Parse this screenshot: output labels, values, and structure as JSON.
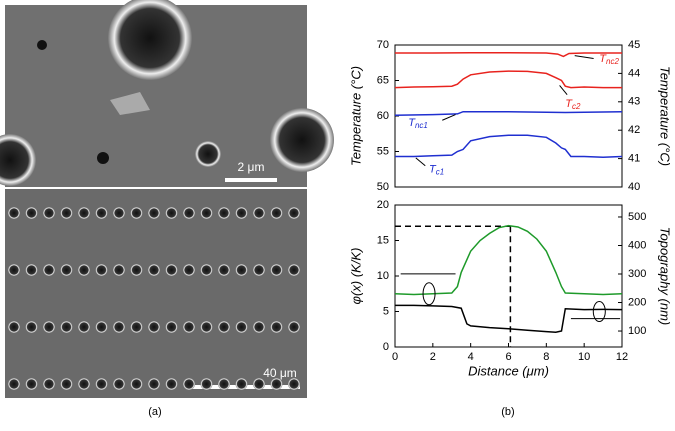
{
  "panels": {
    "a": {
      "label": "(a)",
      "scale_bars": [
        "2 μm",
        "40 μm"
      ]
    },
    "b": {
      "label": "(b)"
    }
  },
  "chart_data": [
    {
      "type": "line",
      "xlim": [
        0,
        12
      ],
      "ylim": [
        50,
        70
      ],
      "yticks": [
        50,
        55,
        60,
        65,
        70
      ],
      "y2lim": [
        40,
        45
      ],
      "y2ticks": [
        40,
        41,
        42,
        43,
        44,
        45
      ],
      "ylabel": "Temperature (°C)",
      "y2label": "Temperature (°C)",
      "series": [
        {
          "name": "Tnc2",
          "color": "#e8231e",
          "axis": "y2",
          "x": [
            0,
            2,
            4,
            6,
            8,
            8.6,
            8.9,
            9.2,
            10,
            12
          ],
          "values": [
            44.72,
            44.72,
            44.73,
            44.73,
            44.72,
            44.68,
            44.6,
            44.7,
            44.72,
            44.72
          ]
        },
        {
          "name": "Tc2",
          "color": "#e8231e",
          "axis": "y2",
          "x": [
            0,
            1,
            2,
            3,
            3.3,
            3.6,
            4,
            5,
            6,
            7,
            8,
            8.5,
            8.8,
            9,
            9.3,
            10,
            11,
            12
          ],
          "values": [
            43.5,
            43.52,
            43.53,
            43.55,
            43.62,
            43.8,
            43.95,
            44.05,
            44.08,
            44.07,
            44.0,
            43.85,
            43.75,
            43.55,
            43.5,
            43.52,
            43.5,
            43.5
          ]
        },
        {
          "name": "Tnc1",
          "color": "#1f2fd0",
          "x": [
            0,
            2,
            3.3,
            3.6,
            6,
            9,
            12
          ],
          "values": [
            60.1,
            60.2,
            60.3,
            60.6,
            60.6,
            60.5,
            60.6
          ]
        },
        {
          "name": "Tc1",
          "color": "#1f2fd0",
          "x": [
            0,
            1,
            2,
            3,
            3.3,
            3.6,
            4,
            5,
            6,
            7,
            8,
            8.5,
            8.8,
            9,
            9.3,
            10,
            11,
            12
          ],
          "values": [
            54.3,
            54.3,
            54.4,
            54.5,
            55.0,
            55.3,
            56.5,
            57.1,
            57.3,
            57.3,
            57.0,
            56.2,
            55.5,
            55.3,
            54.3,
            54.3,
            54.2,
            54.3
          ]
        }
      ],
      "annotations": [
        {
          "text": "T",
          "sub": "nc2",
          "color": "#e8231e"
        },
        {
          "text": "T",
          "sub": "c2",
          "color": "#e8231e"
        },
        {
          "text": "T",
          "sub": "nc1",
          "color": "#1f2fd0"
        },
        {
          "text": "T",
          "sub": "c1",
          "color": "#1f2fd0"
        }
      ]
    },
    {
      "type": "line",
      "xlim": [
        0,
        12
      ],
      "xticks": [
        0,
        2,
        4,
        6,
        8,
        10,
        12
      ],
      "ylim": [
        0,
        20
      ],
      "yticks": [
        0,
        5,
        10,
        15,
        20
      ],
      "y2lim": [
        44,
        542
      ],
      "y2ticks": [
        100,
        200,
        300,
        400,
        500
      ],
      "xlabel": "Distance (μm)",
      "ylabel": "φ(x) (K/K)",
      "y2label": "Topography (nm)",
      "guide": {
        "x": 6.1,
        "y": 17
      },
      "series": [
        {
          "name": "φ(x)",
          "color": "#1e9a2a",
          "x": [
            0,
            1,
            2,
            3,
            3.3,
            3.5,
            4,
            4.5,
            5,
            5.5,
            6,
            6.5,
            7,
            7.5,
            8,
            8.5,
            8.8,
            9,
            10,
            11,
            12
          ],
          "values": [
            7.5,
            7.4,
            7.5,
            7.6,
            8.5,
            10.5,
            13.5,
            15.0,
            16.0,
            16.8,
            17.1,
            16.9,
            16.3,
            15.2,
            13.5,
            10.5,
            8.5,
            7.6,
            7.5,
            7.4,
            7.5
          ]
        },
        {
          "name": "Topography",
          "color": "#000000",
          "axis": "y2",
          "x": [
            0,
            1,
            2,
            3,
            3.5,
            3.8,
            4,
            5,
            6,
            7,
            8,
            8.5,
            8.8,
            9,
            10,
            11,
            12
          ],
          "values": [
            190,
            190,
            188,
            186,
            180,
            125,
            118,
            112,
            108,
            103,
            98,
            96,
            100,
            178,
            175,
            176,
            175
          ]
        }
      ]
    }
  ]
}
